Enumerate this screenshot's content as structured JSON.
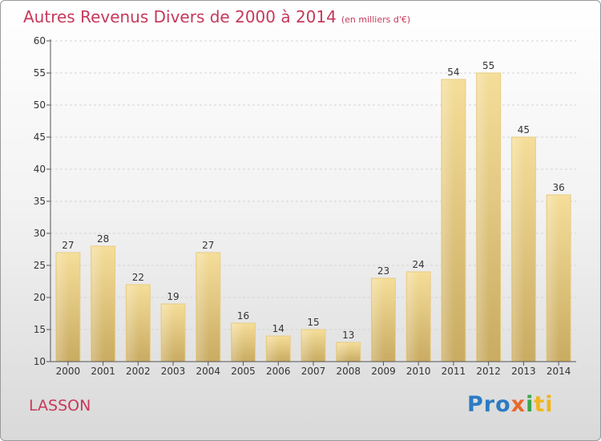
{
  "chart_data": {
    "type": "bar",
    "title": "Autres Revenus Divers de 2000 à 2014",
    "subtitle": "(en milliers d'€)",
    "categories": [
      "2000",
      "2001",
      "2002",
      "2003",
      "2004",
      "2005",
      "2006",
      "2007",
      "2008",
      "2009",
      "2010",
      "2011",
      "2012",
      "2013",
      "2014"
    ],
    "values": [
      27,
      28,
      22,
      19,
      27,
      16,
      14,
      15,
      13,
      23,
      24,
      54,
      55,
      45,
      36
    ],
    "ylim": [
      10,
      60
    ],
    "yticks": [
      10,
      15,
      20,
      25,
      30,
      35,
      40,
      45,
      50,
      55,
      60
    ],
    "grid": true,
    "bar_color": "#e8cd85"
  },
  "footer": {
    "commune": "LASSON",
    "brand": [
      "Pro",
      "x",
      "i",
      "ti"
    ]
  }
}
